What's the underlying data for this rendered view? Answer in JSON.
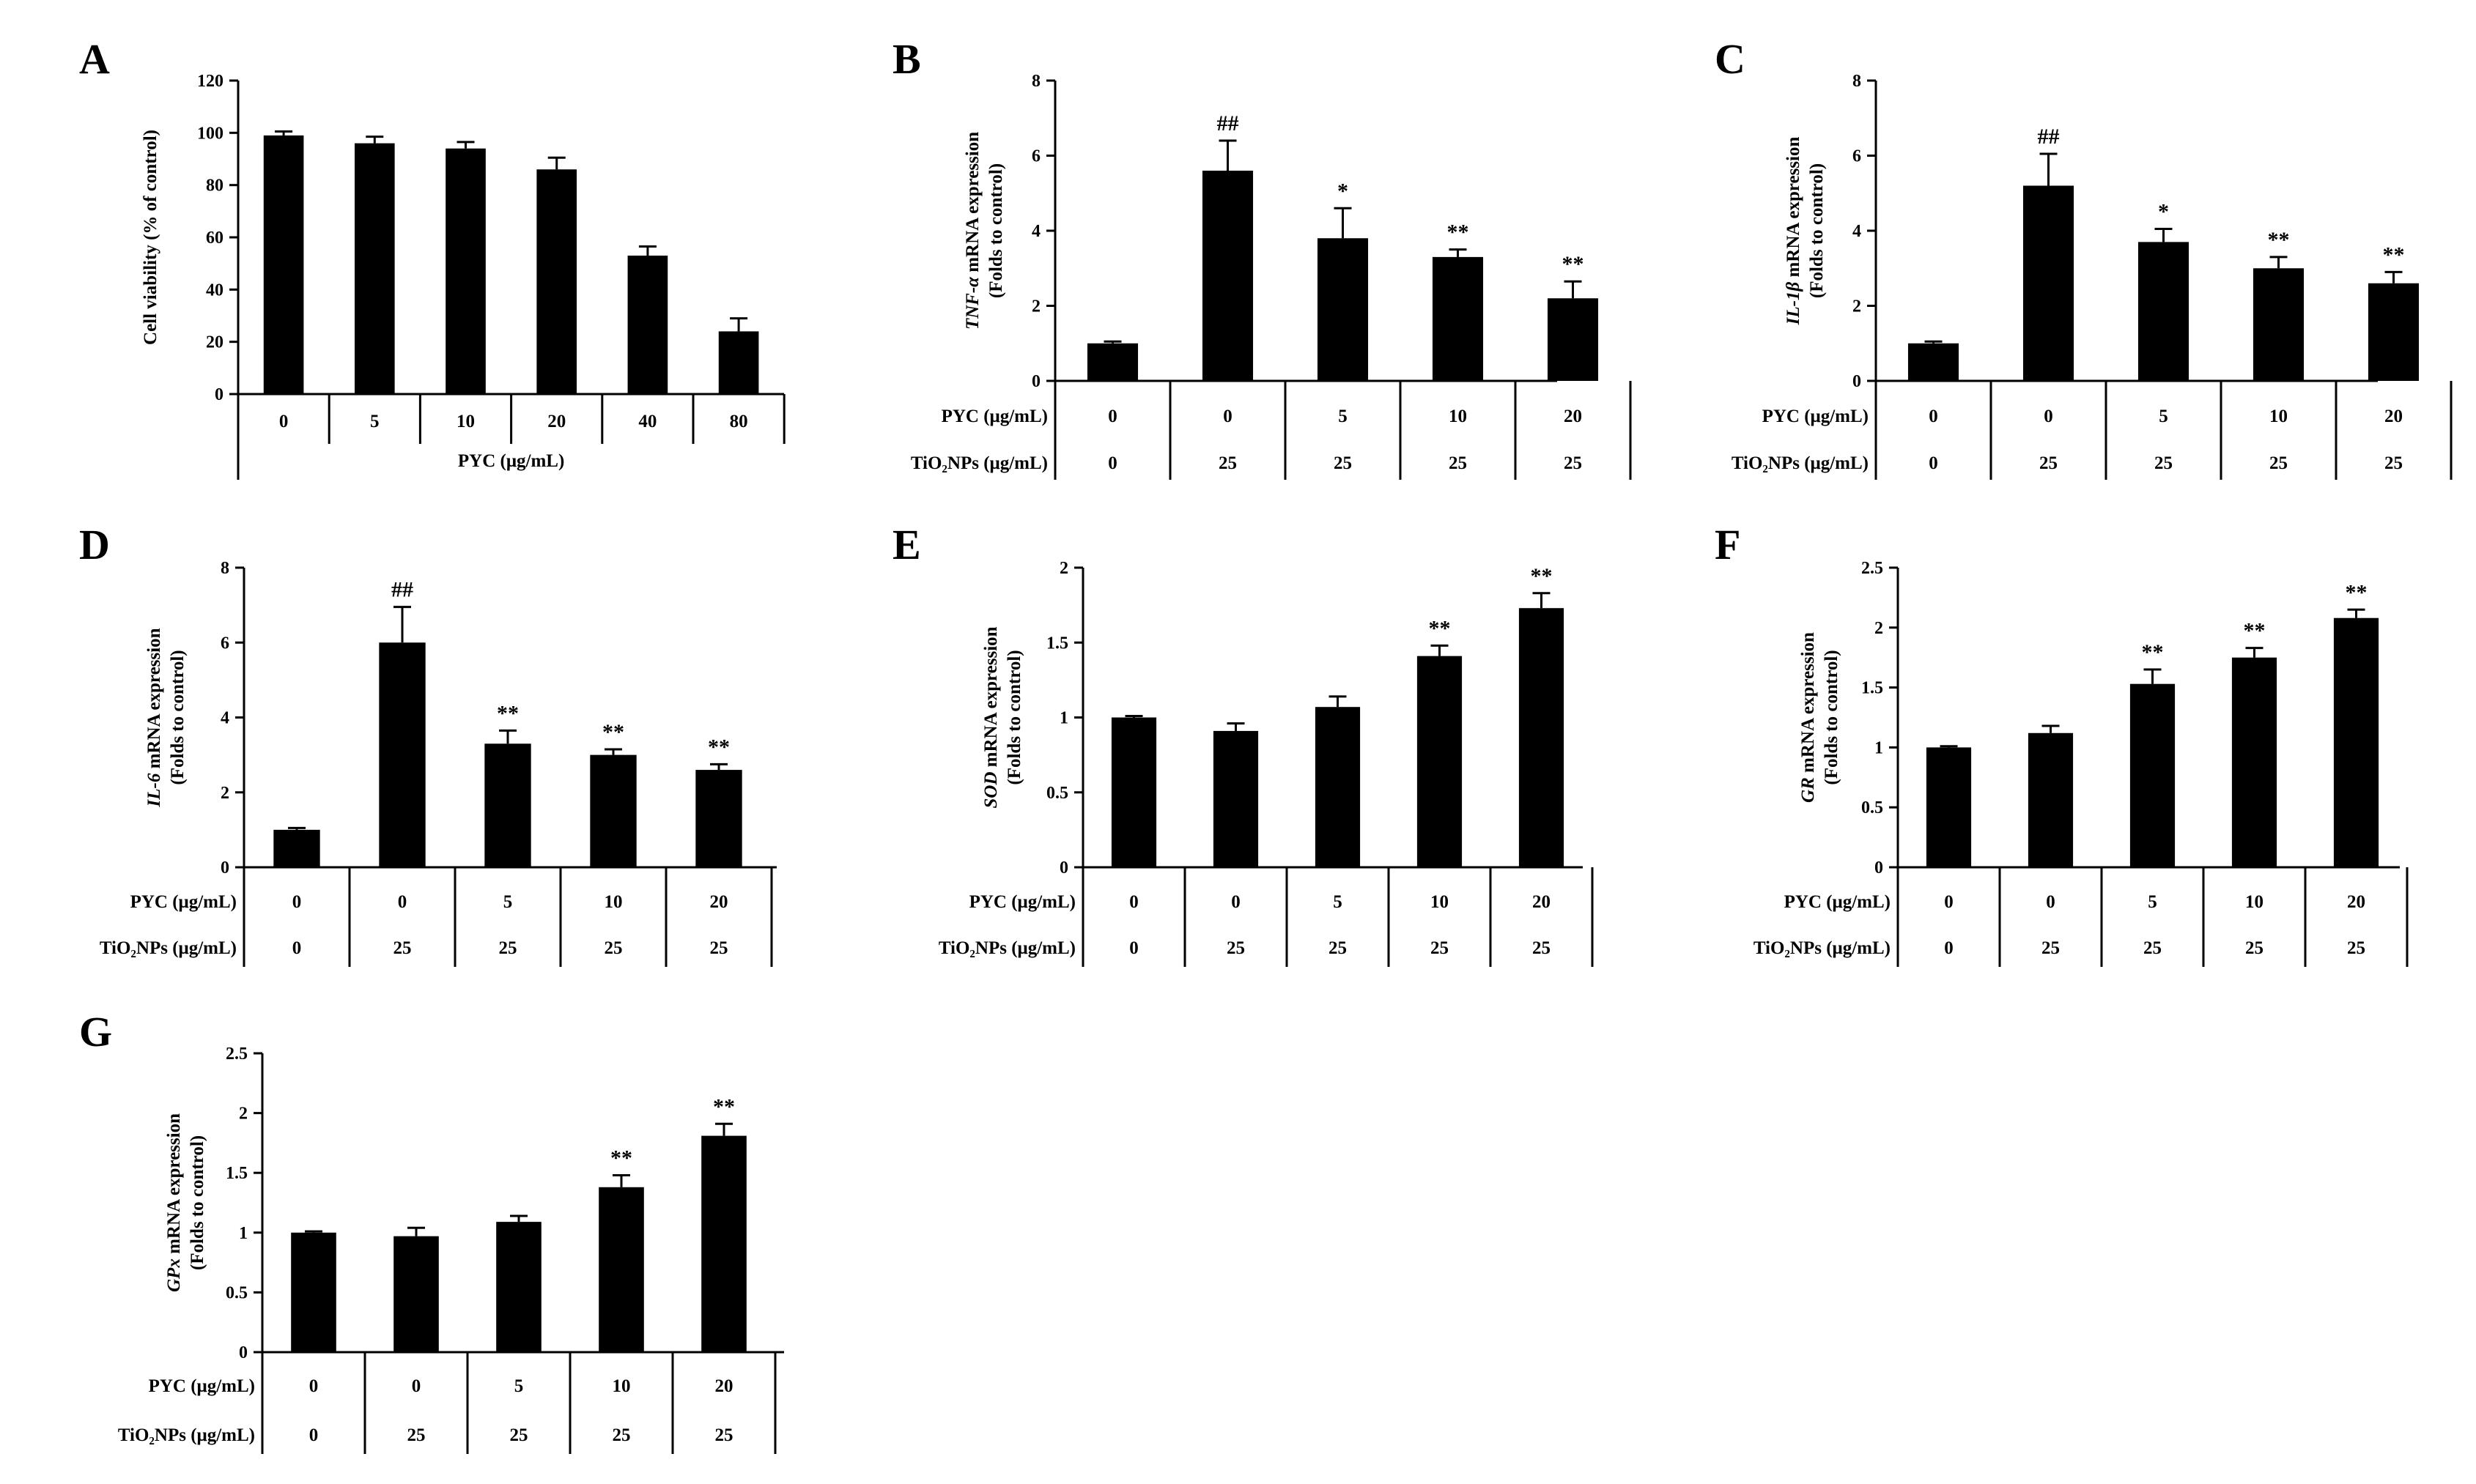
{
  "chart_data": [
    {
      "panel": "A",
      "type": "bar",
      "ylabel": "Cell viability (% of control)",
      "ylabel_italic": "",
      "ylim": [
        0,
        120
      ],
      "yticks": [
        "0",
        "20",
        "40",
        "60",
        "80",
        "100",
        "120"
      ],
      "values": [
        99,
        96,
        94,
        86,
        53,
        24
      ],
      "errors": [
        1.5,
        2.5,
        2.5,
        4.5,
        3.5,
        5
      ],
      "significance": [
        "",
        "",
        "",
        "",
        "",
        ""
      ],
      "table": {
        "rows": [
          {
            "label": "",
            "values": [
              "0",
              "5",
              "10",
              "20",
              "40",
              "80"
            ]
          }
        ],
        "footer": "PYC (μg/mL)"
      }
    },
    {
      "panel": "B",
      "type": "bar",
      "ylabel": " mRNA expression",
      "ylabel_italic": "TNF-α",
      "ylabel2": "(Folds to control)",
      "ylim": [
        0,
        8
      ],
      "yticks": [
        "0",
        "2",
        "4",
        "6",
        "8"
      ],
      "values": [
        1.0,
        5.6,
        3.8,
        3.3,
        2.2
      ],
      "errors": [
        0.05,
        0.8,
        0.8,
        0.2,
        0.45
      ],
      "significance": [
        "",
        "##",
        "*",
        "**",
        "**"
      ],
      "table": {
        "rows": [
          {
            "label": "PYC (μg/mL)",
            "values": [
              "0",
              "0",
              "5",
              "10",
              "20"
            ]
          },
          {
            "label": "TiO₂NPs (μg/mL)",
            "values": [
              "0",
              "25",
              "25",
              "25",
              "25"
            ]
          }
        ]
      }
    },
    {
      "panel": "C",
      "type": "bar",
      "ylabel": " mRNA expression",
      "ylabel_italic": "IL-1β",
      "ylabel2": "(Folds to control)",
      "ylim": [
        0,
        8
      ],
      "yticks": [
        "0",
        "2",
        "4",
        "6",
        "8"
      ],
      "values": [
        1.0,
        5.2,
        3.7,
        3.0,
        2.6
      ],
      "errors": [
        0.05,
        0.85,
        0.35,
        0.3,
        0.3
      ],
      "significance": [
        "",
        "##",
        "*",
        "**",
        "**"
      ],
      "table": {
        "rows": [
          {
            "label": "PYC (μg/mL)",
            "values": [
              "0",
              "0",
              "5",
              "10",
              "20"
            ]
          },
          {
            "label": "TiO₂NPs (μg/mL)",
            "values": [
              "0",
              "25",
              "25",
              "25",
              "25"
            ]
          }
        ]
      }
    },
    {
      "panel": "D",
      "type": "bar",
      "ylabel": " mRNA expression",
      "ylabel_italic": "IL-6",
      "ylabel2": "(Folds to control)",
      "ylim": [
        0,
        8
      ],
      "yticks": [
        "0",
        "2",
        "4",
        "6",
        "8"
      ],
      "values": [
        1.0,
        6.0,
        3.3,
        3.0,
        2.6
      ],
      "errors": [
        0.05,
        0.95,
        0.35,
        0.15,
        0.15
      ],
      "significance": [
        "",
        "##",
        "**",
        "**",
        "**"
      ],
      "table": {
        "rows": [
          {
            "label": "PYC (μg/mL)",
            "values": [
              "0",
              "0",
              "5",
              "10",
              "20"
            ]
          },
          {
            "label": "TiO₂NPs (μg/mL)",
            "values": [
              "0",
              "25",
              "25",
              "25",
              "25"
            ]
          }
        ]
      }
    },
    {
      "panel": "E",
      "type": "bar",
      "ylabel": " mRNA expression",
      "ylabel_italic": "SOD",
      "ylabel2": "(Folds to control)",
      "ylim": [
        0,
        2
      ],
      "yticks": [
        "0",
        "0.5",
        "1",
        "1.5",
        "2"
      ],
      "values": [
        1.0,
        0.91,
        1.07,
        1.41,
        1.73
      ],
      "errors": [
        0.01,
        0.05,
        0.07,
        0.07,
        0.1
      ],
      "significance": [
        "",
        "",
        "",
        "**",
        "**"
      ],
      "table": {
        "rows": [
          {
            "label": "PYC (μg/mL)",
            "values": [
              "0",
              "0",
              "5",
              "10",
              "20"
            ]
          },
          {
            "label": "TiO₂NPs (μg/mL)",
            "values": [
              "0",
              "25",
              "25",
              "25",
              "25"
            ]
          }
        ]
      }
    },
    {
      "panel": "F",
      "type": "bar",
      "ylabel": " mRNA expression",
      "ylabel_italic": "GR",
      "ylabel2": "(Folds to control)",
      "ylim": [
        0,
        2.5
      ],
      "yticks": [
        "0",
        "0.5",
        "1",
        "1.5",
        "2",
        "2.5"
      ],
      "values": [
        1.0,
        1.12,
        1.53,
        1.75,
        2.08
      ],
      "errors": [
        0.01,
        0.06,
        0.12,
        0.08,
        0.07
      ],
      "significance": [
        "",
        "",
        "**",
        "**",
        "**"
      ],
      "table": {
        "rows": [
          {
            "label": "PYC (μg/mL)",
            "values": [
              "0",
              "0",
              "5",
              "10",
              "20"
            ]
          },
          {
            "label": "TiO₂NPs (μg/mL)",
            "values": [
              "0",
              "25",
              "25",
              "25",
              "25"
            ]
          }
        ]
      }
    },
    {
      "panel": "G",
      "type": "bar",
      "ylabel": " mRNA expression",
      "ylabel_italic": "GPx",
      "ylabel2": "(Folds to control)",
      "ylim": [
        0,
        2.5
      ],
      "yticks": [
        "0",
        "0.5",
        "1",
        "1.5",
        "2",
        "2.5"
      ],
      "values": [
        1.0,
        0.97,
        1.09,
        1.38,
        1.81
      ],
      "errors": [
        0.01,
        0.07,
        0.05,
        0.1,
        0.1
      ],
      "significance": [
        "",
        "",
        "",
        "**",
        "**"
      ],
      "table": {
        "rows": [
          {
            "label": "PYC (μg/mL)",
            "values": [
              "0",
              "0",
              "5",
              "10",
              "20"
            ]
          },
          {
            "label": "TiO₂NPs (μg/mL)",
            "values": [
              "0",
              "25",
              "25",
              "25",
              "25"
            ]
          }
        ]
      }
    }
  ]
}
